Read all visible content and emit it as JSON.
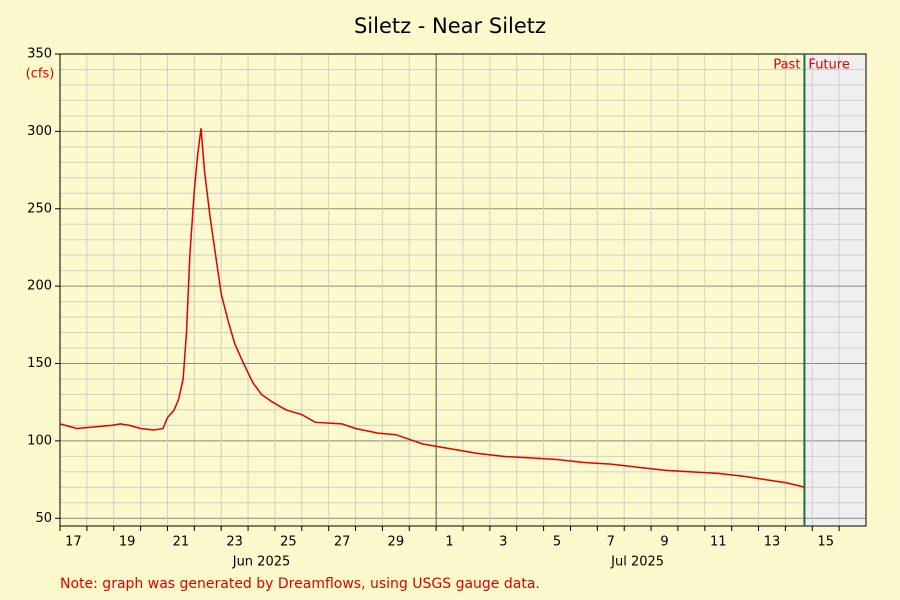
{
  "chart_data": {
    "type": "line",
    "title": "Siletz - Near Siletz",
    "y_unit": "(cfs)",
    "note": "Note: graph was generated by Dreamflows, using USGS gauge data.",
    "past_label": "Past",
    "future_label": "Future",
    "now": "2025-07-14T17:00",
    "color": "#e00000",
    "grid": true,
    "xlim": [
      "2025-06-17T00:00",
      "2025-07-17T00:00"
    ],
    "ylim": [
      45,
      350
    ],
    "yticks": [
      50,
      100,
      150,
      200,
      250,
      300,
      350
    ],
    "yminorticks": [
      60,
      70,
      80,
      90,
      110,
      120,
      130,
      140,
      160,
      170,
      180,
      190,
      210,
      220,
      230,
      240,
      260,
      270,
      280,
      290,
      310,
      320,
      330,
      340
    ],
    "xticks": [
      {
        "value": "2025-06-17T00:00",
        "label": "17"
      },
      {
        "value": "2025-06-19T00:00",
        "label": "19"
      },
      {
        "value": "2025-06-21T00:00",
        "label": "21"
      },
      {
        "value": "2025-06-23T00:00",
        "label": "23"
      },
      {
        "value": "2025-06-25T00:00",
        "label": "25"
      },
      {
        "value": "2025-06-27T00:00",
        "label": "27"
      },
      {
        "value": "2025-06-29T00:00",
        "label": "29"
      },
      {
        "value": "2025-07-01T00:00",
        "label": "1"
      },
      {
        "value": "2025-07-03T00:00",
        "label": "3"
      },
      {
        "value": "2025-07-05T00:00",
        "label": "5"
      },
      {
        "value": "2025-07-07T00:00",
        "label": "7"
      },
      {
        "value": "2025-07-09T00:00",
        "label": "9"
      },
      {
        "value": "2025-07-11T00:00",
        "label": "11"
      },
      {
        "value": "2025-07-13T00:00",
        "label": "13"
      },
      {
        "value": "2025-07-15T00:00",
        "label": "15"
      }
    ],
    "xminorticks": [
      "2025-06-18T00:00",
      "2025-06-20T00:00",
      "2025-06-22T00:00",
      "2025-06-24T00:00",
      "2025-06-26T00:00",
      "2025-06-28T00:00",
      "2025-06-30T00:00",
      "2025-07-02T00:00",
      "2025-07-04T00:00",
      "2025-07-06T00:00",
      "2025-07-08T00:00",
      "2025-07-10T00:00",
      "2025-07-12T00:00",
      "2025-07-14T00:00",
      "2025-07-16T00:00"
    ],
    "month_labels": [
      {
        "value": "2025-06-24T12:00",
        "label": "Jun 2025"
      },
      {
        "value": "2025-07-08T12:00",
        "label": "Jul 2025"
      }
    ],
    "month_start": "2025-07-01T00:00",
    "x": [
      "2025-06-17T00:00",
      "2025-06-17T15:00",
      "2025-06-18T22:00",
      "2025-06-19T06:00",
      "2025-06-19T14:00",
      "2025-06-20T00:00",
      "2025-06-20T12:00",
      "2025-06-20T20:00",
      "2025-06-21T00:00",
      "2025-06-21T06:00",
      "2025-06-21T10:00",
      "2025-06-21T14:00",
      "2025-06-21T17:00",
      "2025-06-21T20:00",
      "2025-06-22T00:00",
      "2025-06-22T03:00",
      "2025-06-22T06:00",
      "2025-06-22T09:00",
      "2025-06-22T14:00",
      "2025-06-22T18:00",
      "2025-06-23T00:00",
      "2025-06-23T06:00",
      "2025-06-23T12:00",
      "2025-06-23T20:00",
      "2025-06-24T04:00",
      "2025-06-24T12:00",
      "2025-06-24T22:00",
      "2025-06-25T10:00",
      "2025-06-26T00:00",
      "2025-06-26T12:00",
      "2025-06-27T12:00",
      "2025-06-28T00:00",
      "2025-06-28T20:00",
      "2025-06-29T12:00",
      "2025-06-30T00:00",
      "2025-06-30T12:00",
      "2025-07-01T12:00",
      "2025-07-02T12:00",
      "2025-07-03T12:00",
      "2025-07-04T12:00",
      "2025-07-05T12:00",
      "2025-07-06T12:00",
      "2025-07-07T12:00",
      "2025-07-08T12:00",
      "2025-07-09T12:00",
      "2025-07-10T12:00",
      "2025-07-11T12:00",
      "2025-07-12T12:00",
      "2025-07-13T06:00",
      "2025-07-14T00:00",
      "2025-07-14T12:00",
      "2025-07-14T17:00"
    ],
    "values": [
      111,
      108,
      110,
      111,
      110,
      108,
      107,
      108,
      115,
      120,
      127,
      140,
      170,
      220,
      262,
      285,
      302,
      275,
      245,
      225,
      195,
      178,
      163,
      150,
      138,
      130,
      125,
      120,
      117,
      112,
      111,
      108,
      105,
      104,
      101,
      98,
      95,
      92,
      90,
      89,
      88,
      86,
      85,
      83,
      81,
      80,
      79,
      77,
      75,
      73,
      71,
      70
    ]
  }
}
